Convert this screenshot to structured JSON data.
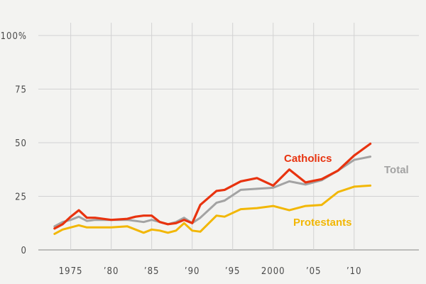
{
  "chart_data": {
    "type": "line",
    "ylim": [
      0,
      100
    ],
    "xlim": [
      1971,
      2018
    ],
    "y_ticks": [
      {
        "value": 0,
        "label": "0"
      },
      {
        "value": 25,
        "label": "25"
      },
      {
        "value": 50,
        "label": "50"
      },
      {
        "value": 75,
        "label": "75"
      },
      {
        "value": 100,
        "label": "100%"
      }
    ],
    "x_ticks": [
      {
        "value": 1975,
        "label": "1975"
      },
      {
        "value": 1980,
        "label": "’80"
      },
      {
        "value": 1985,
        "label": "’85"
      },
      {
        "value": 1990,
        "label": "’90"
      },
      {
        "value": 1995,
        "label": "’95"
      },
      {
        "value": 2000,
        "label": "2000"
      },
      {
        "value": 2005,
        "label": "’05"
      },
      {
        "value": 2010,
        "label": "’10"
      }
    ],
    "grid": true,
    "series": [
      {
        "name": "Total",
        "color": "#a3a3a3",
        "x": [
          1973,
          1974,
          1975,
          1976,
          1977,
          1978,
          1980,
          1982,
          1983,
          1984,
          1985,
          1986,
          1987,
          1988,
          1989,
          1990,
          1991,
          1993,
          1994,
          1996,
          1998,
          2000,
          2002,
          2004,
          2006,
          2008,
          2010,
          2012
        ],
        "y": [
          11,
          13,
          14,
          15.5,
          13.5,
          14,
          14,
          14,
          13.5,
          13,
          14,
          13,
          12,
          13,
          15,
          12.5,
          15,
          22,
          23,
          28,
          28.5,
          29,
          32,
          30.5,
          32.5,
          37,
          42,
          43.5
        ]
      },
      {
        "name": "Catholics",
        "color": "#e8330f",
        "x": [
          1973,
          1974,
          1975,
          1976,
          1977,
          1978,
          1980,
          1982,
          1983,
          1984,
          1985,
          1986,
          1987,
          1988,
          1989,
          1990,
          1991,
          1993,
          1994,
          1996,
          1998,
          2000,
          2002,
          2004,
          2006,
          2008,
          2010,
          2012
        ],
        "y": [
          10,
          12,
          15.5,
          18.5,
          15,
          15,
          14,
          14.5,
          15.5,
          16,
          16,
          13,
          12,
          12.5,
          14,
          12.5,
          21,
          27.5,
          28,
          32,
          33.5,
          30,
          37.5,
          31.5,
          33,
          37,
          44,
          49.5
        ]
      },
      {
        "name": "Protestants",
        "color": "#f2b705",
        "x": [
          1973,
          1974,
          1975,
          1976,
          1977,
          1978,
          1980,
          1982,
          1983,
          1984,
          1985,
          1986,
          1987,
          1988,
          1989,
          1990,
          1991,
          1993,
          1994,
          1996,
          1998,
          2000,
          2002,
          2004,
          2006,
          2008,
          2010,
          2012
        ],
        "y": [
          7.5,
          9.5,
          10.5,
          11.5,
          10.5,
          10.5,
          10.5,
          11,
          9.5,
          8,
          9.5,
          9,
          8,
          9,
          12.5,
          9,
          8.5,
          16,
          15.5,
          19,
          19.5,
          20.5,
          18.5,
          20.5,
          21,
          27,
          29.5,
          30
        ]
      }
    ]
  }
}
